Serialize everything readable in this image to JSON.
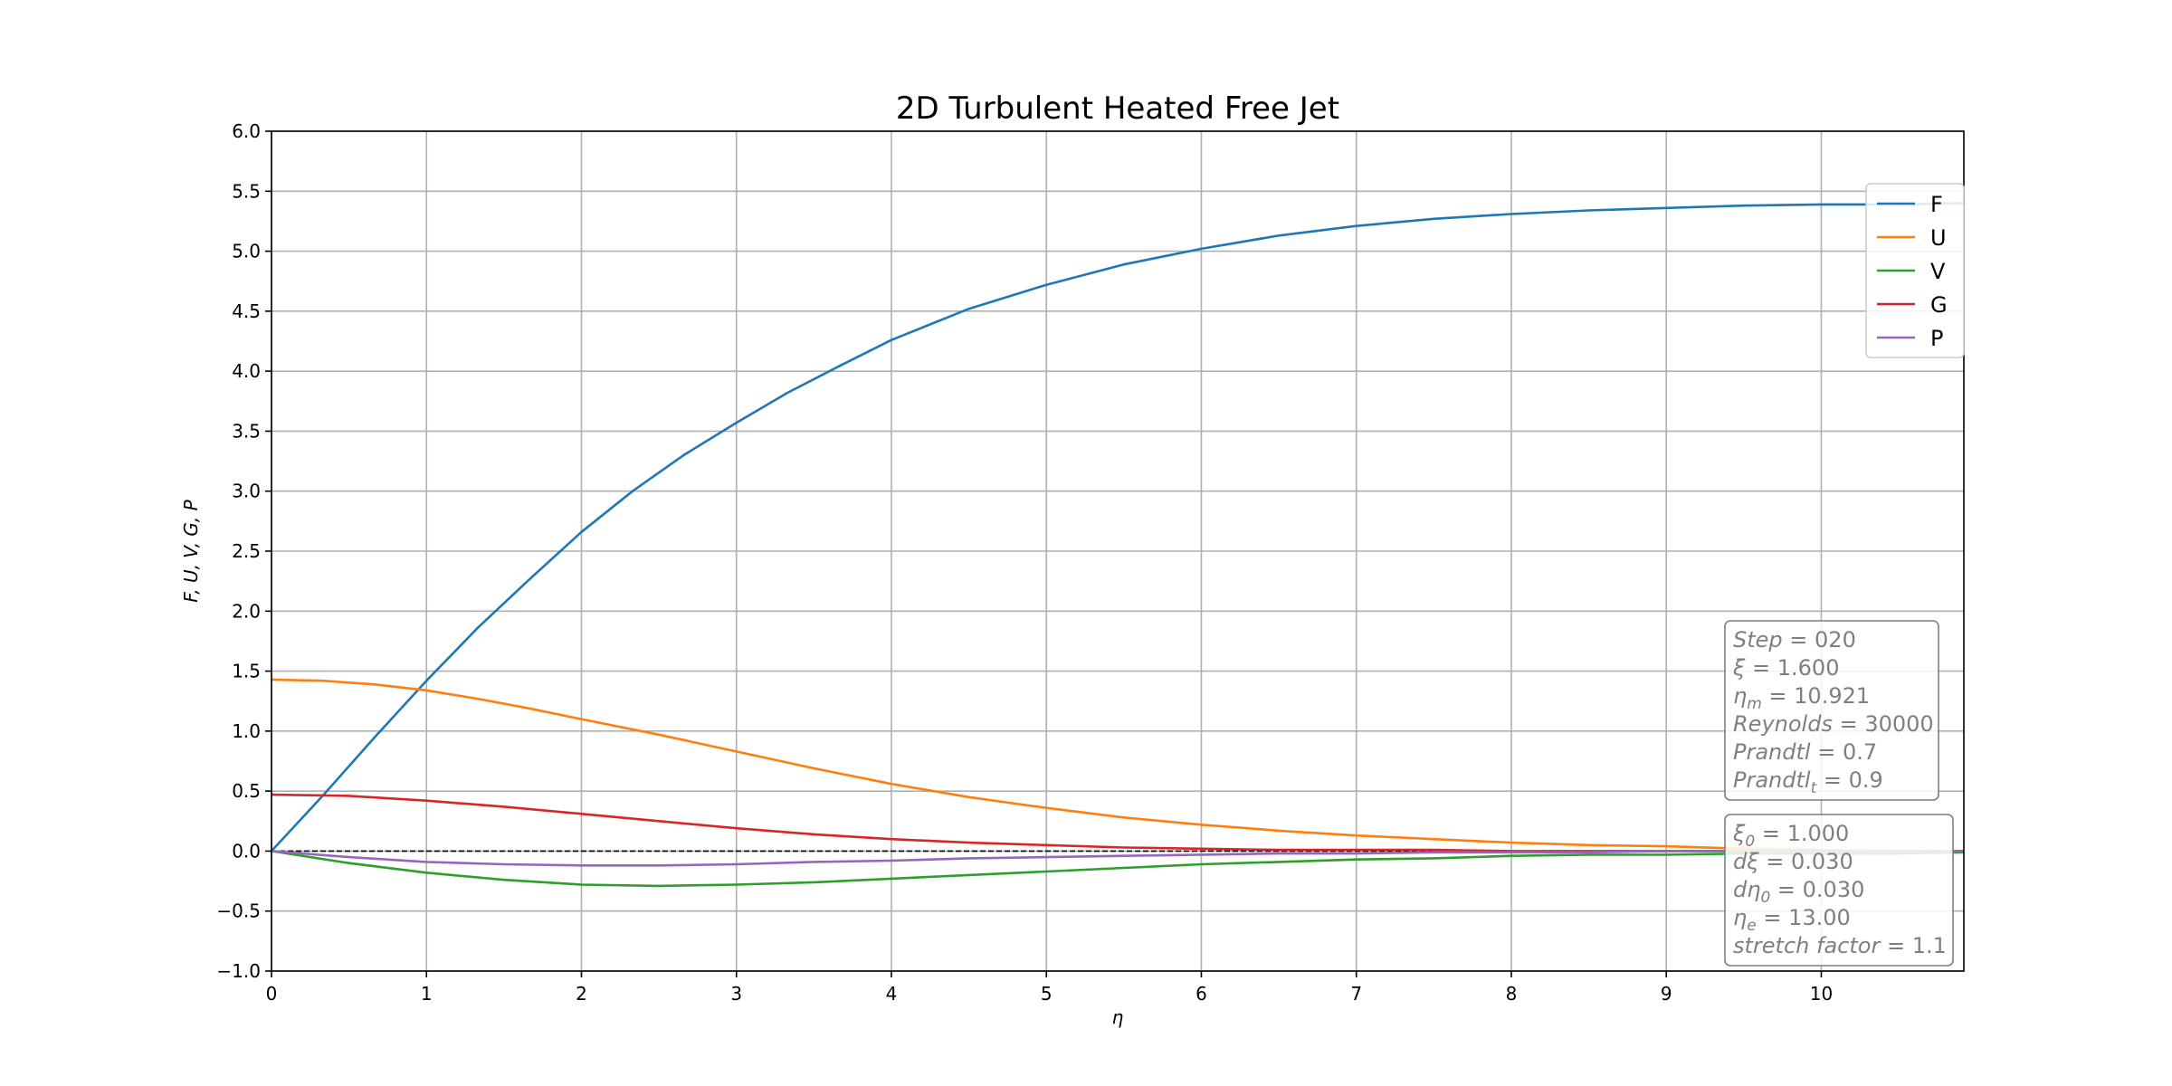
{
  "chart_data": {
    "type": "line",
    "title": "2D Turbulent Heated Free Jet",
    "xlabel": "η",
    "ylabel": "F, U, V, G, P",
    "xlim": [
      0,
      10.92
    ],
    "ylim": [
      -1.0,
      6.0
    ],
    "x_ticks": [
      "0",
      "1",
      "2",
      "3",
      "4",
      "5",
      "6",
      "7",
      "8",
      "9",
      "10"
    ],
    "y_ticks": [
      "−1.0",
      "−0.5",
      "0.0",
      "0.5",
      "1.0",
      "1.5",
      "2.0",
      "2.5",
      "3.0",
      "3.5",
      "4.0",
      "4.5",
      "5.0",
      "5.5",
      "6.0"
    ],
    "grid": true,
    "legend_position": "upper right",
    "reference_line": {
      "y": 0,
      "style": "dashed",
      "color": "#000000"
    },
    "series": [
      {
        "name": "F",
        "color": "#1f77b4",
        "x": [
          0,
          0.33,
          0.66,
          1.0,
          1.33,
          1.66,
          2.0,
          2.33,
          2.66,
          3.0,
          3.33,
          3.66,
          4.0,
          4.5,
          5.0,
          5.5,
          6.0,
          6.5,
          7.0,
          7.5,
          8.0,
          8.5,
          9.0,
          9.5,
          10.0,
          10.5,
          10.92
        ],
        "y": [
          0,
          0.46,
          0.94,
          1.42,
          1.86,
          2.26,
          2.66,
          3.0,
          3.3,
          3.57,
          3.82,
          4.04,
          4.26,
          4.52,
          4.72,
          4.89,
          5.02,
          5.13,
          5.21,
          5.27,
          5.31,
          5.34,
          5.36,
          5.38,
          5.39,
          5.39,
          5.4
        ]
      },
      {
        "name": "U",
        "color": "#ff7f0e",
        "x": [
          0,
          0.33,
          0.66,
          1.0,
          1.33,
          1.66,
          2.0,
          2.5,
          3.0,
          3.5,
          4.0,
          4.5,
          5.0,
          5.5,
          6.0,
          6.5,
          7.0,
          7.5,
          8.0,
          8.5,
          9.0,
          9.5,
          10.0,
          10.5,
          10.92
        ],
        "y": [
          1.43,
          1.42,
          1.39,
          1.34,
          1.27,
          1.19,
          1.1,
          0.97,
          0.83,
          0.69,
          0.56,
          0.45,
          0.36,
          0.28,
          0.22,
          0.17,
          0.13,
          0.1,
          0.07,
          0.05,
          0.04,
          0.02,
          0.01,
          0.0,
          0.0
        ]
      },
      {
        "name": "V",
        "color": "#2ca02c",
        "x": [
          0,
          0.5,
          1.0,
          1.5,
          2.0,
          2.5,
          3.0,
          3.5,
          4.0,
          4.5,
          5.0,
          5.5,
          6.0,
          6.5,
          7.0,
          7.5,
          8.0,
          8.5,
          9.0,
          9.5,
          10.0,
          10.5,
          10.92
        ],
        "y": [
          0.0,
          -0.1,
          -0.18,
          -0.24,
          -0.28,
          -0.29,
          -0.28,
          -0.26,
          -0.23,
          -0.2,
          -0.17,
          -0.14,
          -0.11,
          -0.09,
          -0.07,
          -0.06,
          -0.04,
          -0.03,
          -0.03,
          -0.02,
          -0.02,
          -0.02,
          -0.01
        ]
      },
      {
        "name": "G",
        "color": "#d62728",
        "x": [
          0,
          0.5,
          1.0,
          1.5,
          2.0,
          2.5,
          3.0,
          3.5,
          4.0,
          4.5,
          5.0,
          5.5,
          6.0,
          6.5,
          7.0,
          7.5,
          8.0,
          8.5,
          9.0,
          9.5,
          10.0,
          10.5,
          10.92
        ],
        "y": [
          0.47,
          0.46,
          0.42,
          0.37,
          0.31,
          0.25,
          0.19,
          0.14,
          0.1,
          0.07,
          0.05,
          0.03,
          0.02,
          0.01,
          0.01,
          0.01,
          0.0,
          0.0,
          0.0,
          0.0,
          0.0,
          0.0,
          0.0
        ]
      },
      {
        "name": "P",
        "color": "#9467bd",
        "x": [
          0,
          0.5,
          1.0,
          1.5,
          2.0,
          2.5,
          3.0,
          3.5,
          4.0,
          4.5,
          5.0,
          5.5,
          6.0,
          6.5,
          7.0,
          7.5,
          8.0,
          8.5,
          9.0,
          9.5,
          10.0,
          10.5,
          10.92
        ],
        "y": [
          0.0,
          -0.05,
          -0.09,
          -0.11,
          -0.12,
          -0.12,
          -0.11,
          -0.09,
          -0.08,
          -0.06,
          -0.05,
          -0.04,
          -0.03,
          -0.02,
          -0.02,
          -0.01,
          -0.01,
          -0.01,
          0.0,
          0.0,
          0.0,
          0.0,
          0.0
        ]
      }
    ],
    "annotations": {
      "params_box": [
        {
          "var": "Step",
          "value": "020"
        },
        {
          "var": "ξ",
          "value": "1.600"
        },
        {
          "var": "η",
          "sub": "m",
          "value": "10.921"
        },
        {
          "var": "Reynolds",
          "value": "30000"
        },
        {
          "var": "Prandtl",
          "value": "0.7"
        },
        {
          "var": "Prandtl",
          "sub": "t",
          "value": "0.9"
        }
      ],
      "settings_box": [
        {
          "var": "ξ",
          "sub": "0",
          "value": "1.000"
        },
        {
          "var": "dξ",
          "value": "0.030"
        },
        {
          "var": "dη",
          "sub": "0",
          "value": "0.030"
        },
        {
          "var": "η",
          "sub": "e",
          "value": "13.00"
        },
        {
          "var": "stretch factor",
          "value": "1.1"
        }
      ]
    }
  }
}
